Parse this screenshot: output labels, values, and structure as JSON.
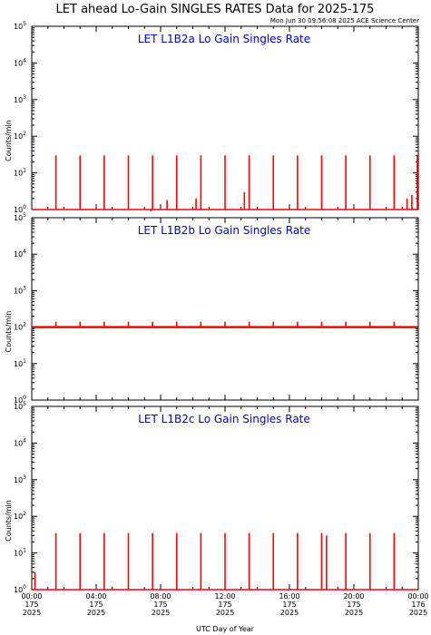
{
  "header": {
    "title": "LET ahead Lo-Gain SINGLES RATES Data for 2025-175",
    "timestamp": "Mon Jun 30 09:56:08 2025 ACE Science Center"
  },
  "colors": {
    "series": "#ff0000",
    "panel_title": "#0000d0",
    "axes": "#000000"
  },
  "chart_data": [
    {
      "type": "line",
      "title": "LET L1B2a Lo Gain Singles Rate",
      "ylabel": "Counts/min",
      "yscale": "log",
      "ylim": [
        1,
        100000
      ],
      "xlim": [
        0,
        24
      ],
      "baseline": 0.9,
      "spikes": [
        {
          "x": 1.5,
          "y": 30
        },
        {
          "x": 3.0,
          "y": 30
        },
        {
          "x": 4.5,
          "y": 30
        },
        {
          "x": 6.0,
          "y": 30
        },
        {
          "x": 7.4,
          "y": 0.9
        },
        {
          "x": 7.5,
          "y": 30
        },
        {
          "x": 8.4,
          "y": 1.8
        },
        {
          "x": 9.0,
          "y": 30
        },
        {
          "x": 10.2,
          "y": 2.0
        },
        {
          "x": 10.5,
          "y": 30
        },
        {
          "x": 12.0,
          "y": 30
        },
        {
          "x": 13.2,
          "y": 3.0
        },
        {
          "x": 13.5,
          "y": 30
        },
        {
          "x": 15.0,
          "y": 30
        },
        {
          "x": 16.5,
          "y": 30
        },
        {
          "x": 18.0,
          "y": 30
        },
        {
          "x": 19.5,
          "y": 30
        },
        {
          "x": 21.0,
          "y": 30
        },
        {
          "x": 22.5,
          "y": 30
        },
        {
          "x": 23.3,
          "y": 2.0
        },
        {
          "x": 23.6,
          "y": 2.5
        },
        {
          "x": 24.0,
          "y": 30
        }
      ]
    },
    {
      "type": "line",
      "title": "LET L1B2b Lo Gain Singles Rate",
      "ylabel": "Counts/min",
      "yscale": "log",
      "ylim": [
        1,
        100000
      ],
      "xlim": [
        0,
        24
      ],
      "baseline": 100,
      "spikes": [
        {
          "x": 1.5,
          "y": 140
        },
        {
          "x": 3.0,
          "y": 140
        },
        {
          "x": 4.5,
          "y": 140
        },
        {
          "x": 6.0,
          "y": 140
        },
        {
          "x": 7.5,
          "y": 140
        },
        {
          "x": 9.0,
          "y": 140
        },
        {
          "x": 10.5,
          "y": 140
        },
        {
          "x": 12.0,
          "y": 140
        },
        {
          "x": 13.5,
          "y": 140
        },
        {
          "x": 15.0,
          "y": 140
        },
        {
          "x": 16.5,
          "y": 140
        },
        {
          "x": 18.0,
          "y": 140
        },
        {
          "x": 19.5,
          "y": 140
        },
        {
          "x": 21.0,
          "y": 140
        },
        {
          "x": 22.5,
          "y": 140
        }
      ]
    },
    {
      "type": "line",
      "title": "LET L1B2c Lo Gain Singles Rate",
      "ylabel": "Counts/min",
      "yscale": "log",
      "ylim": [
        1,
        100000
      ],
      "xlim": [
        0,
        24
      ],
      "baseline": 1.0,
      "spikes": [
        {
          "x": 0.2,
          "y": 3
        },
        {
          "x": 1.5,
          "y": 35
        },
        {
          "x": 3.0,
          "y": 35
        },
        {
          "x": 4.5,
          "y": 35
        },
        {
          "x": 6.0,
          "y": 35
        },
        {
          "x": 7.5,
          "y": 35
        },
        {
          "x": 9.0,
          "y": 35
        },
        {
          "x": 10.5,
          "y": 35
        },
        {
          "x": 12.0,
          "y": 35
        },
        {
          "x": 13.5,
          "y": 35
        },
        {
          "x": 15.0,
          "y": 35
        },
        {
          "x": 16.5,
          "y": 35
        },
        {
          "x": 18.0,
          "y": 35
        },
        {
          "x": 18.3,
          "y": 30
        },
        {
          "x": 19.5,
          "y": 35
        },
        {
          "x": 21.0,
          "y": 35
        },
        {
          "x": 22.5,
          "y": 35
        }
      ]
    }
  ],
  "yticks": {
    "labels": [
      {
        "base": "10",
        "exp": "0"
      },
      {
        "base": "10",
        "exp": "1"
      },
      {
        "base": "10",
        "exp": "2"
      },
      {
        "base": "10",
        "exp": "3"
      },
      {
        "base": "10",
        "exp": "4"
      },
      {
        "base": "10",
        "exp": "5"
      }
    ]
  },
  "xaxis": {
    "xlabel": "UTC Day of Year",
    "ticks": [
      {
        "x": 0,
        "time": "00:00",
        "doy": "175",
        "year": "2025"
      },
      {
        "x": 4,
        "time": "04:00",
        "doy": "175",
        "year": "2025"
      },
      {
        "x": 8,
        "time": "08:00",
        "doy": "175",
        "year": "2025"
      },
      {
        "x": 12,
        "time": "12:00",
        "doy": "175",
        "year": "2025"
      },
      {
        "x": 16,
        "time": "16:00",
        "doy": "175",
        "year": "2025"
      },
      {
        "x": 20,
        "time": "20:00",
        "doy": "175",
        "year": "2025"
      },
      {
        "x": 24,
        "time": "00:00",
        "doy": "176",
        "year": "2025"
      }
    ]
  }
}
